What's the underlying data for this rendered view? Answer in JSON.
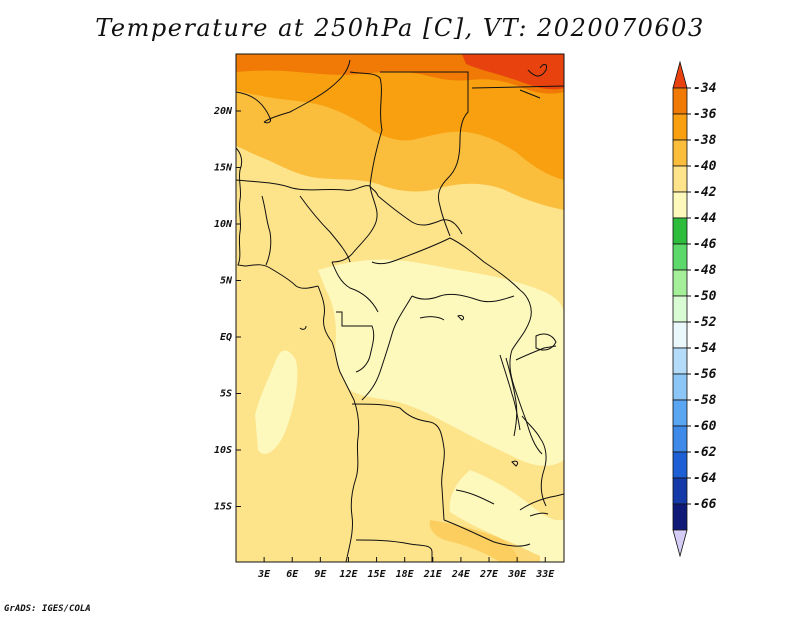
{
  "title": "Temperature at 250hPa [C], VT: 2020070603",
  "credit": "GrADS: IGES/COLA",
  "map": {
    "lat_labels": [
      {
        "label": "20N",
        "lat": 20
      },
      {
        "label": "15N",
        "lat": 15
      },
      {
        "label": "10N",
        "lat": 10
      },
      {
        "label": "5N",
        "lat": 5
      },
      {
        "label": "EQ",
        "lat": 0
      },
      {
        "label": "5S",
        "lat": -5
      },
      {
        "label": "10S",
        "lat": -10
      },
      {
        "label": "15S",
        "lat": -15
      }
    ],
    "lon_labels": [
      {
        "label": "3E",
        "lon": 3
      },
      {
        "label": "6E",
        "lon": 6
      },
      {
        "label": "9E",
        "lon": 9
      },
      {
        "label": "12E",
        "lon": 12
      },
      {
        "label": "15E",
        "lon": 15
      },
      {
        "label": "18E",
        "lon": 18
      },
      {
        "label": "21E",
        "lon": 21
      },
      {
        "label": "24E",
        "lon": 24
      },
      {
        "label": "27E",
        "lon": 27
      },
      {
        "label": "30E",
        "lon": 30
      },
      {
        "label": "33E",
        "lon": 33
      }
    ]
  },
  "colorbar": {
    "labels": [
      "-34",
      "-36",
      "-38",
      "-40",
      "-42",
      "-44",
      "-46",
      "-48",
      "-50",
      "-52",
      "-54",
      "-56",
      "-58",
      "-60",
      "-62",
      "-64",
      "-66"
    ],
    "colors": [
      "#e8430f",
      "#f07a05",
      "#f8a010",
      "#fbbd3c",
      "#fde38a",
      "#fdf8bc",
      "#2ebc3c",
      "#5cd96a",
      "#a5ef9b",
      "#d9fbd4",
      "#eaf8fc",
      "#b4dcf8",
      "#8cc6f6",
      "#5aa6f2",
      "#3d8ae8",
      "#1e5fd6",
      "#133aa8",
      "#0f1a78",
      "#d5cdf5"
    ]
  }
}
